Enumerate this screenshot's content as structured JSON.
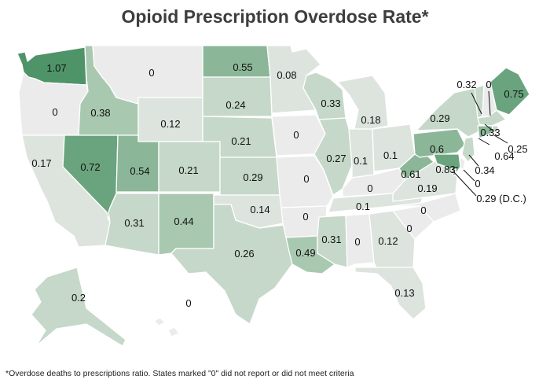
{
  "title": "Opioid Prescription Overdose Rate*",
  "footnote": "*Overdose deaths to prescriptions ratio. States marked \"0\" did not report or did not meet criteria",
  "scale_colors": [
    "#ebebeb",
    "#dde4de",
    "#c5d8c9",
    "#a9c8b0",
    "#8bb798",
    "#6aa47e",
    "#4f9469"
  ],
  "chart_data": {
    "type": "choropleth",
    "unit": "ratio",
    "states": [
      {
        "id": "WA",
        "value": "1.07"
      },
      {
        "id": "OR",
        "value": "0"
      },
      {
        "id": "CA",
        "value": "0.17"
      },
      {
        "id": "ID",
        "value": "0.38"
      },
      {
        "id": "NV",
        "value": "0.72"
      },
      {
        "id": "MT",
        "value": "0"
      },
      {
        "id": "WY",
        "value": "0.12"
      },
      {
        "id": "UT",
        "value": "0.54"
      },
      {
        "id": "AZ",
        "value": "0.31"
      },
      {
        "id": "CO",
        "value": "0.21"
      },
      {
        "id": "NM",
        "value": "0.44"
      },
      {
        "id": "ND",
        "value": "0.55"
      },
      {
        "id": "SD",
        "value": "0.24"
      },
      {
        "id": "NE",
        "value": "0.21"
      },
      {
        "id": "KS",
        "value": "0.29"
      },
      {
        "id": "OK",
        "value": "0.14"
      },
      {
        "id": "TX",
        "value": "0.26"
      },
      {
        "id": "MN",
        "value": "0.08"
      },
      {
        "id": "IA",
        "value": "0"
      },
      {
        "id": "MO",
        "value": "0"
      },
      {
        "id": "AR",
        "value": "0"
      },
      {
        "id": "LA",
        "value": "0.49"
      },
      {
        "id": "WI",
        "value": "0.33"
      },
      {
        "id": "IL",
        "value": "0.27"
      },
      {
        "id": "MI",
        "value": "0.18"
      },
      {
        "id": "IN",
        "value": "0.1"
      },
      {
        "id": "OH",
        "value": "0.1"
      },
      {
        "id": "KY",
        "value": "0"
      },
      {
        "id": "TN",
        "value": "0.1"
      },
      {
        "id": "MS",
        "value": "0.31"
      },
      {
        "id": "AL",
        "value": "0"
      },
      {
        "id": "GA",
        "value": "0.12"
      },
      {
        "id": "FL",
        "value": "0.13"
      },
      {
        "id": "SC",
        "value": "0"
      },
      {
        "id": "NC",
        "value": "0"
      },
      {
        "id": "VA",
        "value": "0.19"
      },
      {
        "id": "WV",
        "value": "0.61"
      },
      {
        "id": "PA",
        "value": "0.6"
      },
      {
        "id": "NY",
        "value": "0.29"
      },
      {
        "id": "VT",
        "value": "0.32"
      },
      {
        "id": "NH",
        "value": "0"
      },
      {
        "id": "ME",
        "value": "0.75"
      },
      {
        "id": "MA",
        "value": "0.33"
      },
      {
        "id": "RI",
        "value": "0.25"
      },
      {
        "id": "CT",
        "value": "0.64"
      },
      {
        "id": "NJ",
        "value": "0.34"
      },
      {
        "id": "DE",
        "value": "0"
      },
      {
        "id": "MD",
        "value": "0.83"
      },
      {
        "id": "DC",
        "value": "0.29 (D.C.)"
      },
      {
        "id": "AK",
        "value": "0.2"
      },
      {
        "id": "HI",
        "value": "0"
      }
    ]
  }
}
